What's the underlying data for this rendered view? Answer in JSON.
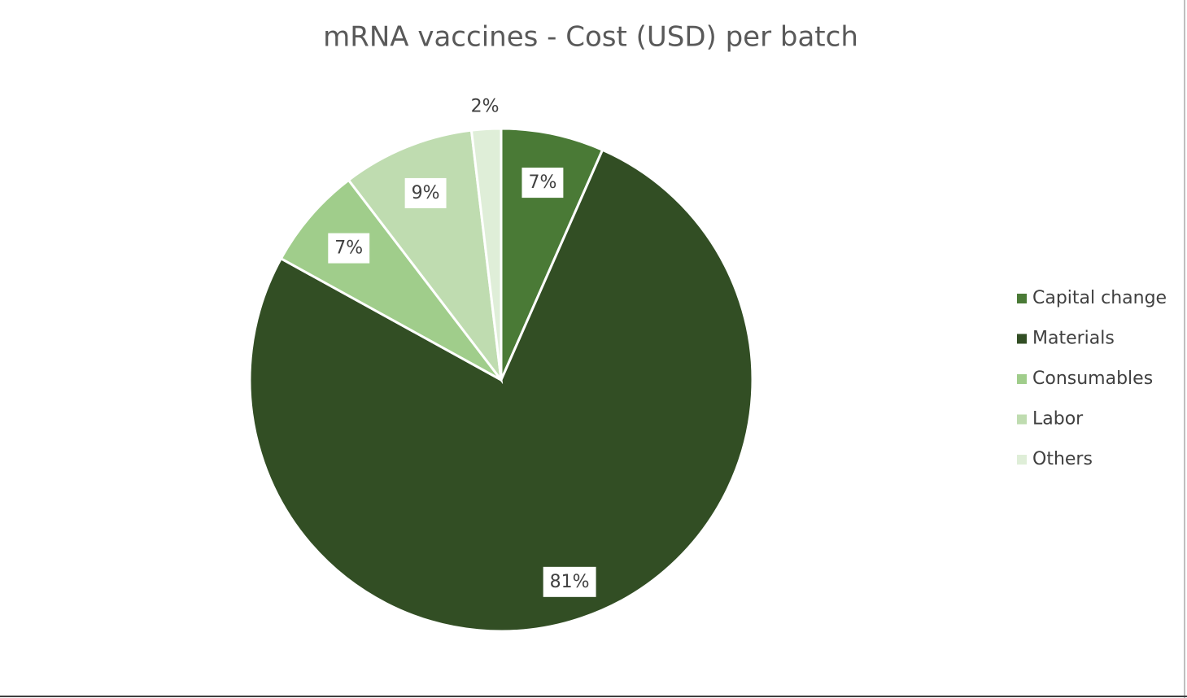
{
  "chart_data": {
    "type": "pie",
    "title": "mRNA vaccines - Cost (USD) per batch",
    "categories": [
      "Capital change",
      "Materials",
      "Consumables",
      "Labor",
      "Others"
    ],
    "values": [
      7,
      81,
      7,
      9,
      2
    ],
    "value_labels": [
      "7%",
      "81%",
      "7%",
      "9%",
      "2%"
    ],
    "colors": [
      "#4a7a36",
      "#324e24",
      "#a0cd8b",
      "#bfdcb0",
      "#dfeed8"
    ],
    "legend": "right"
  }
}
